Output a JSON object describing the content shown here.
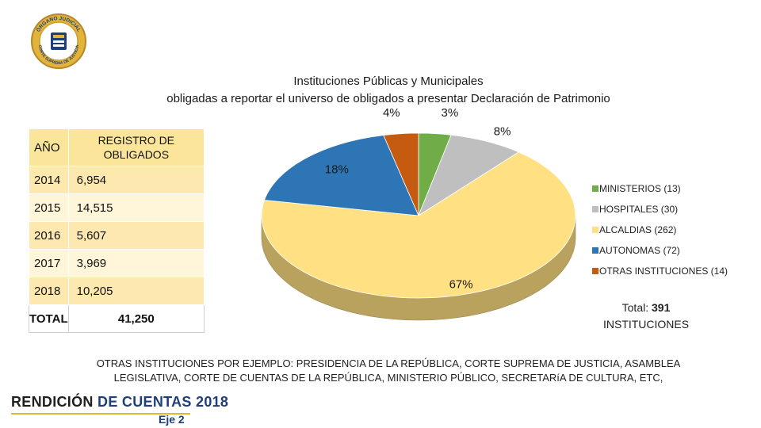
{
  "logo": {
    "text_top": "ÓRGANO JUDICIAL",
    "text_bottom": "CORTE SUPREMA DE JUSTICIA"
  },
  "title": {
    "line1": "Instituciones Públicas y Municipales",
    "line2": "obligadas a reportar el universo de obligados a presentar Declaración de Patrimonio"
  },
  "table": {
    "headers": [
      "AÑO",
      "REGISTRO DE OBLIGADOS"
    ],
    "rows": [
      {
        "year": "2014",
        "value": "6,954"
      },
      {
        "year": "2015",
        "value": "14,515"
      },
      {
        "year": "2016",
        "value": "5,607"
      },
      {
        "year": "2017",
        "value": "3,969"
      },
      {
        "year": "2018",
        "value": "10,205"
      }
    ],
    "total": {
      "label": "TOTAL",
      "value": "41,250"
    }
  },
  "chart_data": {
    "type": "pie",
    "style": "3d",
    "slices": [
      {
        "label": "MINISTERIOS (13)",
        "value": 13,
        "percent_label": "3%",
        "color": "#70ad47"
      },
      {
        "label": "HOSPITALES (30)",
        "value": 30,
        "percent_label": "8%",
        "color": "#bfbfbf"
      },
      {
        "label": "ALCALDIAS (262)",
        "value": 262,
        "percent_label": "67%",
        "color": "#ffe183"
      },
      {
        "label": "AUTONOMAS (72)",
        "value": 72,
        "percent_label": "18%",
        "color": "#2e75b6"
      },
      {
        "label": "OTRAS INSTITUCIONES (14)",
        "value": 14,
        "percent_label": "4%",
        "color": "#c55a11"
      }
    ],
    "legend_position": "right"
  },
  "total_box": {
    "label": "Total:",
    "value": "391",
    "unit": "INSTITUCIONES"
  },
  "footnote": "OTRAS INSTITUCIONES POR EJEMPLO: PRESIDENCIA DE LA REPÚBLICA, CORTE SUPREMA DE JUSTICIA, ASAMBLEA LEGISLATIVA, CORTE DE CUENTAS DE LA REPÚBLICA, MINISTERIO PÚBLICO, SECRETARíA DE CULTURA, ETC,",
  "footer": {
    "brand_part1": "RENDICIÓN",
    "brand_part2": "DE CUENTAS 2018",
    "eje": "Eje 2"
  },
  "colors": {
    "table_header": "#fbe59b",
    "brand_blue": "#1f3f7a",
    "brand_gold": "#e3b43a"
  }
}
